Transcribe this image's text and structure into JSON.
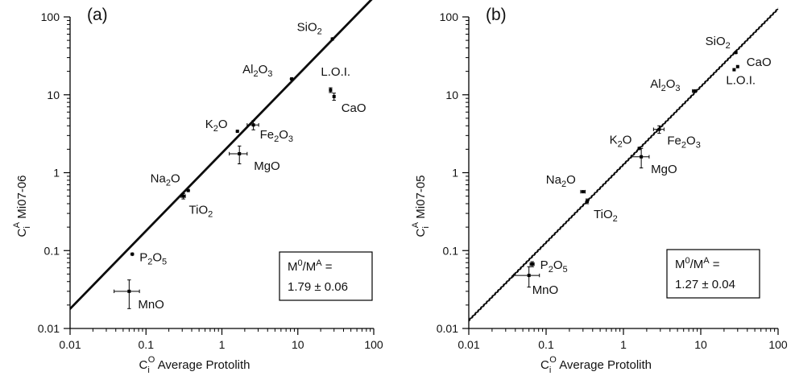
{
  "chart_data": [
    {
      "type": "scatter",
      "panel_label": "(a)",
      "x_scale": "log",
      "y_scale": "log",
      "xlim": [
        0.01,
        100
      ],
      "ylim": [
        0.01,
        100
      ],
      "x_ticks": [
        "0.01",
        "0.1",
        "1",
        "10",
        "100"
      ],
      "y_ticks": [
        "0.01",
        "0.1",
        "1",
        "10",
        "100"
      ],
      "xlabel": {
        "main": "C",
        "sub": "i",
        "sup": "O",
        "rest": "Average Protolith"
      },
      "ylabel": {
        "main": "C",
        "sub": "i",
        "sup": "A",
        "rest": "Mi07-06"
      },
      "isocon": {
        "slope": 1.79,
        "band": [
          1.73,
          1.85
        ]
      },
      "box": {
        "line1_main": "M",
        "line1_sup1": "0",
        "line1_mid": "/M",
        "line1_sup2": "A",
        "line1_end": " =",
        "line2": "1.79 ± 0.06"
      },
      "points": [
        {
          "label": "SiO",
          "sub": "2",
          "x": 28.5,
          "y": 52,
          "xerr": 1.2,
          "yerr": 3
        },
        {
          "label": "Al",
          "sub": "2",
          "mid": "O",
          "sub2": "3",
          "x": 8.3,
          "y": 16,
          "xerr": 0.5,
          "yerr": 0.8
        },
        {
          "label": "L.O.I.",
          "x": 27,
          "y": 11.5,
          "xerr": 0.8,
          "yerr": 0.8
        },
        {
          "label": "CaO",
          "x": 30,
          "y": 9.5,
          "xerr": 0.8,
          "yerr": 1.0
        },
        {
          "label": "K",
          "sub": "2",
          "mid": "O",
          "x": 1.6,
          "y": 3.4,
          "xerr": 0.08,
          "yerr": 0.15
        },
        {
          "label": "Fe",
          "sub": "2",
          "mid": "O",
          "sub2": "3",
          "x": 2.6,
          "y": 4.1,
          "xerr": 0.45,
          "yerr": 0.55
        },
        {
          "label": "MgO",
          "x": 1.7,
          "y": 1.75,
          "xerr": 0.45,
          "yerr": 0.45
        },
        {
          "label": "Na",
          "sub": "2",
          "mid": "O",
          "x": 0.36,
          "y": 0.59,
          "xerr": 0.02,
          "yerr": 0.02
        },
        {
          "label": "TiO",
          "sub": "2",
          "x": 0.31,
          "y": 0.5,
          "xerr": 0.02,
          "yerr": 0.04
        },
        {
          "label": "P",
          "sub": "2",
          "mid": "O",
          "sub2": "5",
          "x": 0.066,
          "y": 0.09,
          "xerr": 0.004,
          "yerr": 0.005
        },
        {
          "label": "MnO",
          "x": 0.06,
          "y": 0.03,
          "xerr": 0.022,
          "yerr": 0.012
        }
      ]
    },
    {
      "type": "scatter",
      "panel_label": "(b)",
      "x_scale": "log",
      "y_scale": "log",
      "xlim": [
        0.01,
        100
      ],
      "ylim": [
        0.01,
        100
      ],
      "x_ticks": [
        "0.01",
        "0.1",
        "1",
        "10",
        "100"
      ],
      "y_ticks": [
        "0.01",
        "0.1",
        "1",
        "10",
        "100"
      ],
      "xlabel": {
        "main": "C",
        "sub": "i",
        "sup": "O",
        "rest": "Average Protolith"
      },
      "ylabel": {
        "main": "C",
        "sub": "i",
        "sup": "A",
        "rest": "Mi07-05"
      },
      "isocon": {
        "slope": 1.27,
        "band": [
          1.23,
          1.31
        ]
      },
      "box": {
        "line1_main": "M",
        "line1_sup1": "0",
        "line1_mid": "/M",
        "line1_sup2": "A",
        "line1_end": " =",
        "line2": "1.27 ± 0.04"
      },
      "points": [
        {
          "label": "SiO",
          "sub": "2",
          "x": 28.5,
          "y": 35,
          "xerr": 1.2,
          "yerr": 2
        },
        {
          "label": "CaO",
          "x": 30,
          "y": 23,
          "xerr": 0.8,
          "yerr": 1.0
        },
        {
          "label": "L.O.I.",
          "x": 27,
          "y": 21,
          "xerr": 0.8,
          "yerr": 0.8
        },
        {
          "label": "Al",
          "sub": "2",
          "mid": "O",
          "sub2": "3",
          "x": 8.3,
          "y": 11.2,
          "xerr": 0.5,
          "yerr": 0.5
        },
        {
          "label": "Fe",
          "sub": "2",
          "mid": "O",
          "sub2": "3",
          "x": 2.9,
          "y": 3.6,
          "xerr": 0.45,
          "yerr": 0.4
        },
        {
          "label": "K",
          "sub": "2",
          "mid": "O",
          "x": 1.6,
          "y": 2.05,
          "xerr": 0.08,
          "yerr": 0.1
        },
        {
          "label": "MgO",
          "x": 1.7,
          "y": 1.6,
          "xerr": 0.45,
          "yerr": 0.45
        },
        {
          "label": "Na",
          "sub": "2",
          "mid": "O",
          "x": 0.3,
          "y": 0.57,
          "xerr": 0.02,
          "yerr": 0.02
        },
        {
          "label": "TiO",
          "sub": "2",
          "x": 0.34,
          "y": 0.43,
          "xerr": 0.02,
          "yerr": 0.03
        },
        {
          "label": "P",
          "sub": "2",
          "mid": "O",
          "sub2": "5",
          "x": 0.066,
          "y": 0.067,
          "xerr": 0.004,
          "yerr": 0.005
        },
        {
          "label": "MnO",
          "x": 0.06,
          "y": 0.048,
          "xerr": 0.022,
          "yerr": 0.014
        }
      ]
    }
  ]
}
